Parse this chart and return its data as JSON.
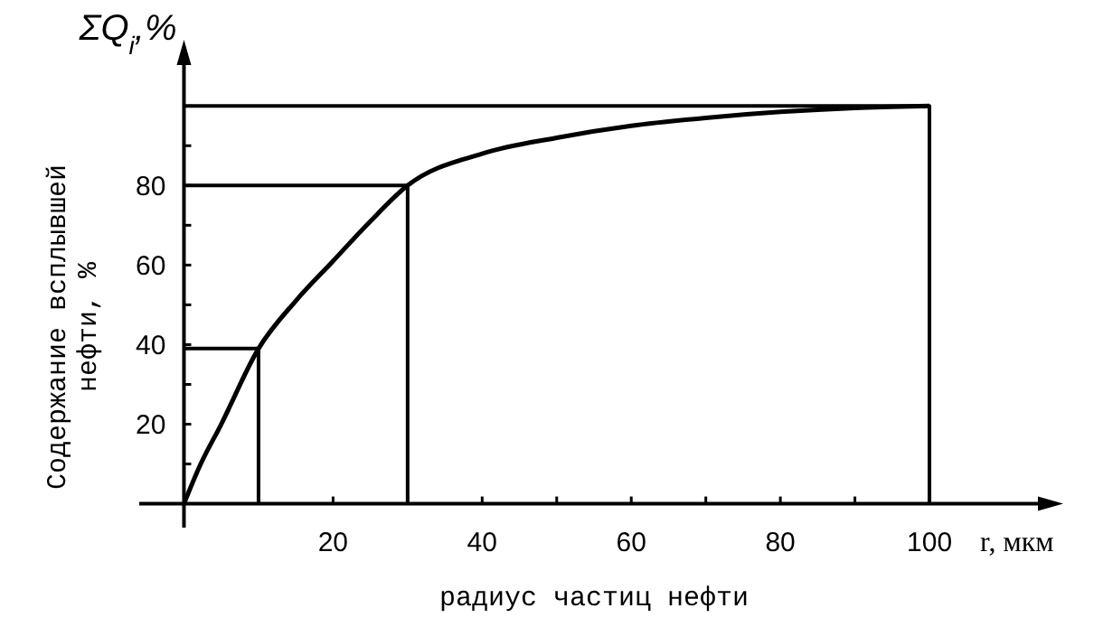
{
  "chart_data": {
    "type": "line",
    "xlabel": "радиус частиц нефти",
    "ylabel": "Содержание всплывшей нефти, %",
    "annotations": [
      "ΣQ$_{i}$,%",
      "r, мкм"
    ],
    "xlim": [
      -6,
      116
    ],
    "ylim": [
      -6,
      113
    ],
    "xticks": [
      {
        "value": 10,
        "label": null
      },
      20,
      {
        "value": 30,
        "label": null
      },
      40,
      {
        "value": 50,
        "label": null
      },
      60,
      {
        "value": 70,
        "label": null
      },
      80,
      {
        "value": 90,
        "label": null
      },
      {
        "value": 100,
        "label": "100"
      }
    ],
    "yticks": [
      {
        "value": 10,
        "label": null
      },
      20,
      {
        "value": 30,
        "label": null
      },
      40,
      {
        "value": 50,
        "label": null
      },
      60,
      {
        "value": 70,
        "label": null
      },
      80,
      {
        "value": 90,
        "label": null
      }
    ],
    "grid": false,
    "marker": "none",
    "line_style": "solid",
    "series": [
      {
        "color": "#000000",
        "x": [
          0,
          2,
          5,
          10,
          15,
          20,
          25,
          30,
          40,
          50,
          60,
          70,
          80,
          90,
          100
        ],
        "values": [
          0,
          9,
          20,
          39,
          51,
          61,
          71,
          80,
          88,
          92,
          95,
          97,
          98.5,
          99.5,
          100
        ]
      },
      {
        "color": "#000000",
        "x": [
          0,
          10,
          10
        ],
        "values": [
          39,
          39,
          0
        ]
      },
      {
        "color": "#000000",
        "x": [
          0,
          30,
          30
        ],
        "values": [
          80,
          80,
          0
        ]
      },
      {
        "color": "#000000",
        "x": [
          0,
          100,
          100
        ],
        "values": [
          100,
          100,
          0
        ]
      }
    ]
  }
}
